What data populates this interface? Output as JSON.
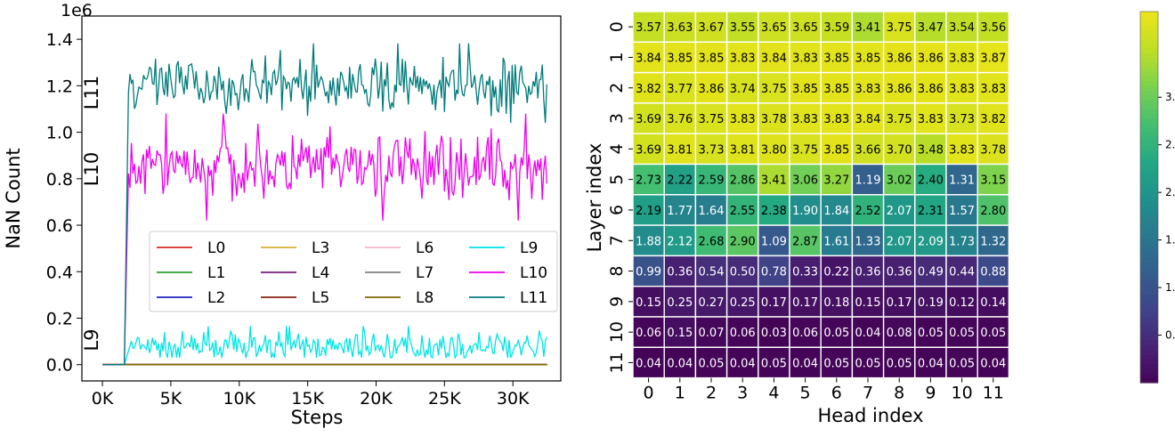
{
  "chart_data": [
    {
      "type": "line",
      "xlabel": "Steps",
      "ylabel": "NaN Count",
      "y_scale_label": "1e6",
      "xlim": [
        -1500,
        33500
      ],
      "ylim": [
        -0.07,
        1.5
      ],
      "y_scale_factor": 1000000,
      "x_ticks": [
        0,
        5000,
        10000,
        15000,
        20000,
        25000,
        30000
      ],
      "x_tick_labels": [
        "0K",
        "5K",
        "10K",
        "15K",
        "20K",
        "25K",
        "30K"
      ],
      "y_ticks": [
        0.0,
        0.2,
        0.4,
        0.6,
        0.8,
        1.0,
        1.2,
        1.4
      ],
      "y_tick_labels": [
        "0.0",
        "0.2",
        "0.4",
        "0.6",
        "0.8",
        "1.0",
        "1.2",
        "1.4"
      ],
      "grid": false,
      "legend_position": "lower-right",
      "legend_ncol": 4,
      "annotations": [
        "L11",
        "L10",
        "L9"
      ],
      "series": [
        {
          "name": "L0",
          "color": "#d62728",
          "x": [
            0,
            1500,
            2000,
            32500
          ],
          "y": [
            0,
            0,
            0,
            0
          ]
        },
        {
          "name": "L1",
          "color": "#2ca02c",
          "x": [
            0,
            1500,
            2000,
            32500
          ],
          "y": [
            0,
            0,
            0,
            0
          ]
        },
        {
          "name": "L2",
          "color": "#1f1fbf",
          "x": [
            0,
            1500,
            2000,
            32500
          ],
          "y": [
            0,
            0,
            0,
            0
          ]
        },
        {
          "name": "L3",
          "color": "#d4b030",
          "x": [
            0,
            1500,
            2000,
            32500
          ],
          "y": [
            0,
            0,
            0,
            0
          ]
        },
        {
          "name": "L4",
          "color": "#7a1e7a",
          "x": [
            0,
            1500,
            2000,
            32500
          ],
          "y": [
            0,
            0,
            0,
            0
          ]
        },
        {
          "name": "L5",
          "color": "#8b2010",
          "x": [
            0,
            1500,
            2000,
            32500
          ],
          "y": [
            0,
            0,
            0,
            0
          ]
        },
        {
          "name": "L6",
          "color": "#f4b6c8",
          "x": [
            0,
            1500,
            2000,
            32500
          ],
          "y": [
            0,
            0,
            0,
            0
          ]
        },
        {
          "name": "L7",
          "color": "#808080",
          "x": [
            0,
            1500,
            2000,
            32500
          ],
          "y": [
            0,
            0,
            0,
            0
          ]
        },
        {
          "name": "L8",
          "color": "#7f6a00",
          "x": [
            0,
            1500,
            2000,
            32500
          ],
          "y": [
            0,
            0,
            0,
            0
          ]
        },
        {
          "name": "L9",
          "color": "#00e5e5",
          "x": [
            0,
            1500,
            2000,
            32500
          ],
          "y": [
            0,
            0,
            0.07,
            0.07
          ],
          "noise_note": "fluctuates ~0.03-0.18 after 2K steps"
        },
        {
          "name": "L10",
          "color": "#ee00ee",
          "x": [
            0,
            1500,
            2000,
            32500
          ],
          "y": [
            0,
            0,
            0.85,
            0.85
          ],
          "noise_note": "fluctuates ~0.58-1.08 after 2K steps"
        },
        {
          "name": "L11",
          "color": "#007b7b",
          "x": [
            0,
            1500,
            2000,
            32500
          ],
          "y": [
            0,
            0,
            1.2,
            1.2
          ],
          "noise_note": "fluctuates ~1.03-1.45 after 2K steps"
        }
      ]
    },
    {
      "type": "heatmap",
      "xlabel": "Head index",
      "ylabel": "Layer index",
      "x_categories": [
        "0",
        "1",
        "2",
        "3",
        "4",
        "5",
        "6",
        "7",
        "8",
        "9",
        "10",
        "11"
      ],
      "y_categories": [
        "0",
        "1",
        "2",
        "3",
        "4",
        "5",
        "6",
        "7",
        "8",
        "9",
        "10",
        "11"
      ],
      "colormap": "viridis",
      "vmin": 0.0,
      "vmax": 3.9,
      "colorbar_tick_labels": [
        "3.",
        "2.",
        "2.",
        "1.",
        "1.",
        "0."
      ],
      "values": [
        [
          3.57,
          3.63,
          3.67,
          3.55,
          3.65,
          3.65,
          3.59,
          3.41,
          3.75,
          3.47,
          3.54,
          3.56
        ],
        [
          3.84,
          3.85,
          3.85,
          3.83,
          3.84,
          3.83,
          3.85,
          3.85,
          3.86,
          3.86,
          3.83,
          3.87
        ],
        [
          3.82,
          3.77,
          3.86,
          3.74,
          3.75,
          3.85,
          3.85,
          3.83,
          3.86,
          3.86,
          3.83,
          3.83
        ],
        [
          3.69,
          3.76,
          3.75,
          3.83,
          3.78,
          3.83,
          3.83,
          3.84,
          3.75,
          3.83,
          3.73,
          3.82
        ],
        [
          3.69,
          3.81,
          3.73,
          3.81,
          3.8,
          3.75,
          3.85,
          3.66,
          3.7,
          3.48,
          3.83,
          3.78
        ],
        [
          2.73,
          2.22,
          2.59,
          2.86,
          3.41,
          3.06,
          3.27,
          1.19,
          3.02,
          2.4,
          1.31,
          3.15
        ],
        [
          2.19,
          1.77,
          1.64,
          2.55,
          2.38,
          1.9,
          1.84,
          2.52,
          2.07,
          2.31,
          1.57,
          2.8
        ],
        [
          1.88,
          2.12,
          2.68,
          2.9,
          1.09,
          2.87,
          1.61,
          1.33,
          2.07,
          2.09,
          1.73,
          1.32
        ],
        [
          0.99,
          0.36,
          0.54,
          0.5,
          0.78,
          0.33,
          0.22,
          0.36,
          0.36,
          0.49,
          0.44,
          0.88
        ],
        [
          0.15,
          0.25,
          0.27,
          0.25,
          0.17,
          0.17,
          0.18,
          0.15,
          0.17,
          0.19,
          0.12,
          0.14
        ],
        [
          0.06,
          0.15,
          0.07,
          0.06,
          0.03,
          0.06,
          0.05,
          0.04,
          0.08,
          0.05,
          0.05,
          0.05
        ],
        [
          0.04,
          0.04,
          0.05,
          0.04,
          0.05,
          0.04,
          0.05,
          0.05,
          0.05,
          0.04,
          0.05,
          0.04
        ]
      ]
    }
  ]
}
